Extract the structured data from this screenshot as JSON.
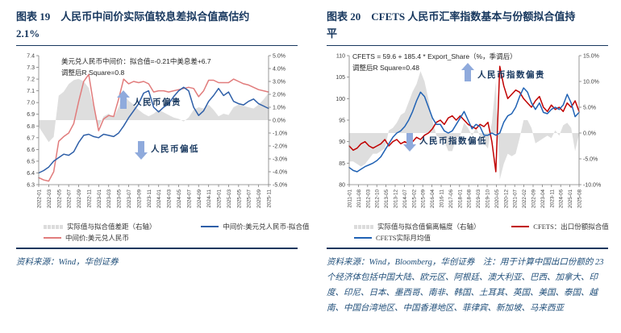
{
  "colors": {
    "navy": "#17375E",
    "source_text": "#1F4E79",
    "arrow": "#8FAADC",
    "axis_line": "#7f7f7f",
    "axis_text": "#404040",
    "area_gray": "#DCDCDC",
    "left_actual_red": "#E17C7C",
    "left_fitted_blue": "#2E5FA8",
    "right_fitted_red": "#C00000",
    "right_actual_blue": "#2062B4"
  },
  "left_figure": {
    "title": "图表 19　人民币中间价实际值较息差拟合值高估约2.1%",
    "formula_line1": "美元兑人民币中间价：拟合值=-0.21中美息差+6.7",
    "formula_line2": "调整后R Square=0.8",
    "annotation_up": "人民币偏贵",
    "annotation_down": "人民币偏低",
    "legend": [
      {
        "label": "实际值与拟合值差距（右轴）",
        "type": "area",
        "color": "#DCDCDC"
      },
      {
        "label": "中间价:美元兑人民币-拟合值",
        "type": "line",
        "color": "#2E5FA8"
      },
      {
        "label": "中间价:美元兑人民币",
        "type": "line",
        "color": "#E17C7C"
      }
    ],
    "source": "资料来源：Wind，华创证券"
  },
  "right_figure": {
    "title": "图表 20　CFETS 人民币汇率指数基本与份额拟合值持平",
    "formula_line1": "CFETS = 59.6 + 185.4 * Export_Share（%，季调后）",
    "formula_line2": "调整后R Square=0.48",
    "annotation_up": "人民币指数偏贵",
    "annotation_down": "人民币指数偏低",
    "legend": [
      {
        "label": "实际值与拟合值偏离幅度（右轴）",
        "type": "area",
        "color": "#DCDCDC"
      },
      {
        "label": "CFETS：出口份额拟合值",
        "type": "line",
        "color": "#C00000"
      },
      {
        "label": "CFETS实际月均值",
        "type": "line",
        "color": "#2062B4"
      }
    ],
    "source": "资料来源：Wind，Bloomberg，华创证券　注：用于计算中国出口份额的 23 个经济体包括中国大陆、欧元区、阿根廷、澳大利亚、巴西、加拿大、印度、印尼、日本、墨西哥、南非、韩国、土耳其、英国、美国、泰国、越南、中国台湾地区、中国香港地区、菲律宾、新加坡、马来西亚"
  },
  "chart_data": [
    {
      "type": "line",
      "title": "人民币中间价实际值与息差拟合值",
      "legend_position": "bottom",
      "grid": false,
      "left_axis": {
        "min": 6.3,
        "max": 7.4,
        "step": 0.1,
        "decimals": 1,
        "suffix": ""
      },
      "right_axis": {
        "min": -5,
        "max": 5,
        "step": 1,
        "decimals": 1,
        "suffix": "%"
      },
      "x_labels": [
        "2022-01",
        "2022-03",
        "2022-05",
        "2022-07",
        "2022-09",
        "2022-11",
        "2023-01",
        "2023-03",
        "2023-05",
        "2023-07",
        "2023-09",
        "2023-11",
        "2024-01",
        "2024-03",
        "2024-05",
        "2024-07",
        "2024-09",
        "2024-11",
        "2025-01",
        "2025-03",
        "2025-05",
        "2025-07",
        "2025-09",
        "2025-11"
      ],
      "series": [
        {
          "name": "实际值与拟合值差距（右轴）",
          "axis": "right",
          "type": "area",
          "color": "#DCDCDC",
          "values": [
            -0.5,
            -1.1,
            -1.7,
            -1.3,
            1.9,
            2.2,
            2.8,
            3.1,
            3.2,
            3.0,
            2.5,
            1.0,
            -0.5,
            0.3,
            0.5,
            0.2,
            1.0,
            2.0,
            1.5,
            1.2,
            0.8,
            0.5,
            0.3,
            0.5,
            0.8,
            0.6,
            0.4,
            0.2,
            0.1,
            -0.1,
            0.2,
            0.8,
            1.0,
            0.9,
            1.2,
            0.8,
            0.3,
            0.5,
            0.4,
            1.0,
            1.2,
            1.1,
            1.0,
            0.9,
            1.2,
            1.6,
            2.1
          ]
        },
        {
          "name": "中间价:美元兑人民币",
          "axis": "left",
          "type": "line",
          "color": "#E17C7C",
          "values": [
            6.36,
            6.34,
            6.33,
            6.41,
            6.67,
            6.71,
            6.74,
            6.82,
            7.01,
            7.18,
            7.24,
            6.98,
            6.76,
            6.86,
            6.89,
            6.88,
            7.03,
            7.2,
            7.16,
            7.18,
            7.17,
            7.18,
            7.16,
            7.09,
            7.1,
            7.1,
            7.09,
            7.1,
            7.11,
            7.12,
            7.13,
            7.12,
            7.05,
            7.1,
            7.19,
            7.19,
            7.17,
            7.17,
            7.17,
            7.2,
            7.18,
            7.16,
            7.15,
            7.13,
            7.11,
            7.1,
            7.09
          ]
        },
        {
          "name": "中间价:美元兑人民币-拟合值",
          "axis": "left",
          "type": "line",
          "color": "#2E5FA8",
          "values": [
            6.4,
            6.42,
            6.45,
            6.5,
            6.53,
            6.56,
            6.55,
            6.58,
            6.66,
            6.72,
            6.73,
            6.71,
            6.7,
            6.73,
            6.72,
            6.71,
            6.74,
            6.8,
            6.87,
            6.93,
            6.99,
            7.08,
            7.1,
            6.96,
            6.92,
            6.96,
            6.99,
            7.05,
            7.1,
            7.13,
            7.1,
            6.96,
            6.89,
            6.93,
            7.01,
            7.06,
            7.12,
            7.06,
            7.09,
            7.01,
            6.99,
            6.98,
            7.01,
            7.03,
            6.99,
            6.97,
            6.95
          ]
        }
      ]
    },
    {
      "type": "line",
      "title": "CFETS 人民币汇率指数与出口份额拟合值",
      "legend_position": "bottom",
      "grid": false,
      "left_axis": {
        "min": 80,
        "max": 110,
        "step": 5,
        "decimals": 0,
        "suffix": ""
      },
      "right_axis": {
        "min": -10,
        "max": 15,
        "step": 5,
        "decimals": 1,
        "suffix": "%"
      },
      "x_labels": [
        "2011-01",
        "2011-08",
        "2012-03",
        "2012-10",
        "2013-05",
        "2013-12",
        "2014-07",
        "2015-02",
        "2015-09",
        "2016-04",
        "2016-11",
        "2017-06",
        "2018-01",
        "2018-08",
        "2019-03",
        "2019-10",
        "2020-05",
        "2020-12",
        "2021-07",
        "2022-02",
        "2022-09",
        "2023-04",
        "2023-11",
        "2024-06",
        "2025-01",
        "2025-08"
      ],
      "series": [
        {
          "name": "实际值与拟合值偏离幅度（右轴）",
          "axis": "right",
          "type": "area",
          "color": "#DCDCDC",
          "values": [
            -5.5,
            -5.5,
            -6.0,
            -6.5,
            -6.0,
            -5.0,
            -4.0,
            -4.0,
            -3.5,
            -3.0,
            0.5,
            1.0,
            2.0,
            3.5,
            4.0,
            6.0,
            8.0,
            9.5,
            12.0,
            10.0,
            6.5,
            2.5,
            -0.5,
            -1.0,
            -1.5,
            -3.5,
            -3.5,
            -1.0,
            -0.5,
            2.0,
            1.0,
            -0.5,
            1.0,
            -0.5,
            -2.0,
            -3.0,
            2.0,
            10.0,
            -9.0,
            -6.0,
            -4.0,
            -4.5,
            -4.0,
            -1.0,
            2.5,
            2.5,
            1.0,
            -2.0,
            -1.5,
            -1.0,
            -0.5,
            -1.0,
            0.5,
            -0.5,
            1.5,
            2.0,
            1.0,
            -3.5,
            -0.2
          ]
        },
        {
          "name": "CFETS：出口份额拟合值",
          "axis": "left",
          "type": "line",
          "color": "#C00000",
          "values": [
            89.0,
            88.0,
            88.5,
            89.5,
            90.0,
            89.0,
            88.5,
            89.0,
            89.5,
            90.5,
            89.0,
            90.0,
            90.5,
            89.5,
            90.0,
            89.5,
            90.0,
            91.0,
            90.5,
            91.5,
            92.0,
            93.0,
            94.5,
            95.0,
            94.0,
            95.5,
            96.0,
            95.0,
            96.0,
            95.0,
            94.0,
            93.5,
            93.0,
            94.0,
            93.5,
            94.5,
            90.0,
            83.0,
            107.5,
            103.0,
            100.0,
            101.0,
            102.0,
            101.5,
            100.0,
            99.0,
            98.0,
            99.5,
            100.5,
            98.0,
            97.0,
            98.5,
            97.5,
            98.0,
            97.0,
            99.0,
            98.0,
            99.5,
            97.0
          ]
        },
        {
          "name": "CFETS实际月均值",
          "axis": "left",
          "type": "line",
          "color": "#2062B4",
          "values": [
            84.0,
            83.3,
            83.0,
            83.6,
            84.2,
            84.6,
            85.0,
            85.6,
            86.5,
            88.0,
            89.5,
            91.0,
            92.0,
            92.5,
            93.5,
            95.0,
            97.0,
            99.5,
            101.5,
            100.5,
            98.0,
            95.5,
            94.0,
            94.0,
            92.5,
            92.0,
            92.5,
            94.0,
            95.5,
            97.0,
            95.0,
            93.0,
            94.0,
            93.5,
            91.5,
            91.5,
            92.0,
            91.5,
            92.0,
            94.5,
            96.0,
            96.5,
            98.0,
            100.5,
            102.5,
            101.5,
            99.0,
            97.5,
            99.0,
            96.8,
            96.5,
            97.5,
            98.0,
            97.5,
            98.5,
            101.0,
            99.0,
            95.8,
            96.8
          ]
        }
      ]
    }
  ]
}
